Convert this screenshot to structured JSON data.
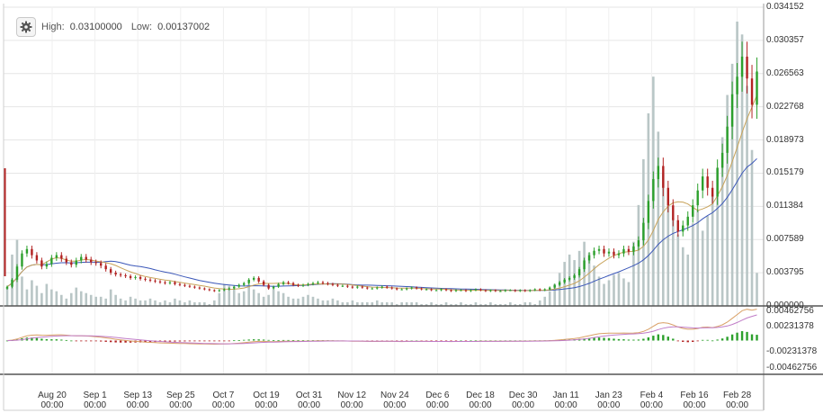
{
  "header": {
    "settings_icon": "gear-icon",
    "high_label": "High:",
    "high_value": "0.03100000",
    "low_label": "Low:",
    "low_value": "0.00137002"
  },
  "colors": {
    "up": "#2ca02c",
    "down": "#b22222",
    "ma_fast": "#c8a35a",
    "ma_slow": "#3a56b8",
    "volume": "#b9c6c6",
    "macd_line": "#d9a066",
    "signal_line": "#c07cc7",
    "grid": "#e6e6e6"
  },
  "chart_data": [
    {
      "type": "candlestick",
      "title": "",
      "y_ticks": [
        "0.034152",
        "0.030357",
        "0.026563",
        "0.022768",
        "0.018973",
        "0.015179",
        "0.011384",
        "0.007589",
        "0.003795",
        "0.000000"
      ],
      "ylim": [
        0,
        0.034152
      ],
      "x_ticks": [
        {
          "date": "Aug 20",
          "time": "00:00"
        },
        {
          "date": "Sep 1",
          "time": "00:00"
        },
        {
          "date": "Sep 13",
          "time": "00:00"
        },
        {
          "date": "Sep 25",
          "time": "00:00"
        },
        {
          "date": "Oct 7",
          "time": "00:00"
        },
        {
          "date": "Oct 19",
          "time": "00:00"
        },
        {
          "date": "Oct 31",
          "time": "00:00"
        },
        {
          "date": "Nov 12",
          "time": "00:00"
        },
        {
          "date": "Nov 24",
          "time": "00:00"
        },
        {
          "date": "Dec 6",
          "time": "00:00"
        },
        {
          "date": "Dec 18",
          "time": "00:00"
        },
        {
          "date": "Dec 30",
          "time": "00:00"
        },
        {
          "date": "Jan 11",
          "time": "00:00"
        },
        {
          "date": "Jan 23",
          "time": "00:00"
        },
        {
          "date": "Feb 4",
          "time": "00:00"
        },
        {
          "date": "Feb 16",
          "time": "00:00"
        },
        {
          "date": "Feb 28",
          "time": "00:00"
        }
      ],
      "close": [
        0.0022,
        0.003,
        0.0045,
        0.006,
        0.0065,
        0.0058,
        0.0052,
        0.0045,
        0.0048,
        0.0055,
        0.0058,
        0.0054,
        0.005,
        0.0047,
        0.0052,
        0.0056,
        0.0053,
        0.005,
        0.0049,
        0.0046,
        0.0042,
        0.0038,
        0.0036,
        0.0035,
        0.0034,
        0.0032,
        0.0033,
        0.0031,
        0.003,
        0.0029,
        0.0028,
        0.0027,
        0.0026,
        0.0027,
        0.0025,
        0.0024,
        0.0023,
        0.0022,
        0.0021,
        0.002,
        0.0019,
        0.0018,
        0.0017,
        0.0018,
        0.0019,
        0.002,
        0.0022,
        0.0024,
        0.0026,
        0.003,
        0.0032,
        0.0028,
        0.0024,
        0.002,
        0.0022,
        0.0025,
        0.0027,
        0.0026,
        0.0024,
        0.0023,
        0.0024,
        0.0025,
        0.0026,
        0.0027,
        0.0026,
        0.0025,
        0.0024,
        0.0023,
        0.0023,
        0.0022,
        0.0021,
        0.0022,
        0.0021,
        0.002,
        0.002,
        0.0021,
        0.0022,
        0.0021,
        0.002,
        0.0019,
        0.0019,
        0.002,
        0.0021,
        0.002,
        0.0019,
        0.0019,
        0.0018,
        0.0018,
        0.0019,
        0.0018,
        0.0017,
        0.0018,
        0.0018,
        0.0017,
        0.0018,
        0.0019,
        0.0018,
        0.0017,
        0.0018,
        0.0017,
        0.0017,
        0.0018,
        0.0018,
        0.0017,
        0.0018,
        0.0017,
        0.0018,
        0.0019,
        0.0018,
        0.0019,
        0.0021,
        0.0024,
        0.0027,
        0.003,
        0.0032,
        0.0035,
        0.0042,
        0.0052,
        0.0058,
        0.0063,
        0.0065,
        0.006,
        0.0062,
        0.0058,
        0.006,
        0.0065,
        0.0062,
        0.0068,
        0.0075,
        0.0095,
        0.012,
        0.0145,
        0.016,
        0.0135,
        0.0115,
        0.0098,
        0.0085,
        0.0092,
        0.0102,
        0.0115,
        0.0132,
        0.0148,
        0.0135,
        0.0125,
        0.0158,
        0.0175,
        0.0205,
        0.0242,
        0.0262,
        0.0285,
        0.026,
        0.023,
        0.0268
      ],
      "volume_ylim": [
        0,
        0.0155
      ],
      "volume": [
        0.001,
        0.0028,
        0.0036,
        0.0016,
        0.0009,
        0.0014,
        0.0011,
        0.0007,
        0.0012,
        0.0009,
        0.0008,
        0.0006,
        0.0004,
        0.0007,
        0.001,
        0.0008,
        0.0007,
        0.0006,
        0.0005,
        0.0005,
        0.0004,
        0.0009,
        0.0006,
        0.0004,
        0.0003,
        0.0005,
        0.0004,
        0.0003,
        0.0003,
        0.0004,
        0.0003,
        0.0002,
        0.0003,
        0.0002,
        0.0004,
        0.0003,
        0.0002,
        0.0003,
        0.0002,
        0.0002,
        0.0002,
        0.0001,
        0.0003,
        0.0007,
        0.0012,
        0.0011,
        0.0009,
        0.0007,
        0.0008,
        0.0012,
        0.0009,
        0.0007,
        0.0005,
        0.0006,
        0.0009,
        0.0008,
        0.0007,
        0.0005,
        0.0004,
        0.0004,
        0.0005,
        0.0006,
        0.0005,
        0.0004,
        0.0003,
        0.0003,
        0.0004,
        0.0003,
        0.0002,
        0.0002,
        0.0003,
        0.0002,
        0.0002,
        0.0002,
        0.0002,
        0.0003,
        0.0002,
        0.0002,
        0.0002,
        0.0001,
        0.0002,
        0.0002,
        0.0002,
        0.0002,
        0.0001,
        0.0001,
        0.0002,
        0.0001,
        0.0001,
        0.0002,
        0.0001,
        0.0001,
        0.0002,
        0.0001,
        0.0001,
        0.0002,
        0.0001,
        0.0001,
        0.0002,
        0.0001,
        0.0001,
        0.0001,
        0.0002,
        0.0001,
        0.0001,
        0.0002,
        0.0002,
        0.0001,
        0.0003,
        0.0005,
        0.0008,
        0.0012,
        0.0018,
        0.0024,
        0.0028,
        0.0025,
        0.003,
        0.0035,
        0.0029,
        0.0022,
        0.0016,
        0.0012,
        0.0014,
        0.0017,
        0.0018,
        0.0015,
        0.0013,
        0.0035,
        0.0055,
        0.008,
        0.0105,
        0.0125,
        0.0095,
        0.0072,
        0.0058,
        0.0048,
        0.0039,
        0.0032,
        0.0028,
        0.0045,
        0.0052,
        0.0041,
        0.0049,
        0.0061,
        0.0075,
        0.0092,
        0.0115,
        0.0132,
        0.0155,
        0.0148,
        0.012,
        0.0085,
        0.0018
      ]
    },
    {
      "type": "line",
      "title": "",
      "y_ticks": [
        "0.00462756",
        "0.00231378",
        "",
        "-0.00231378",
        "-0.00462756"
      ],
      "ylim": [
        -0.00462756,
        0.00462756
      ]
    }
  ]
}
